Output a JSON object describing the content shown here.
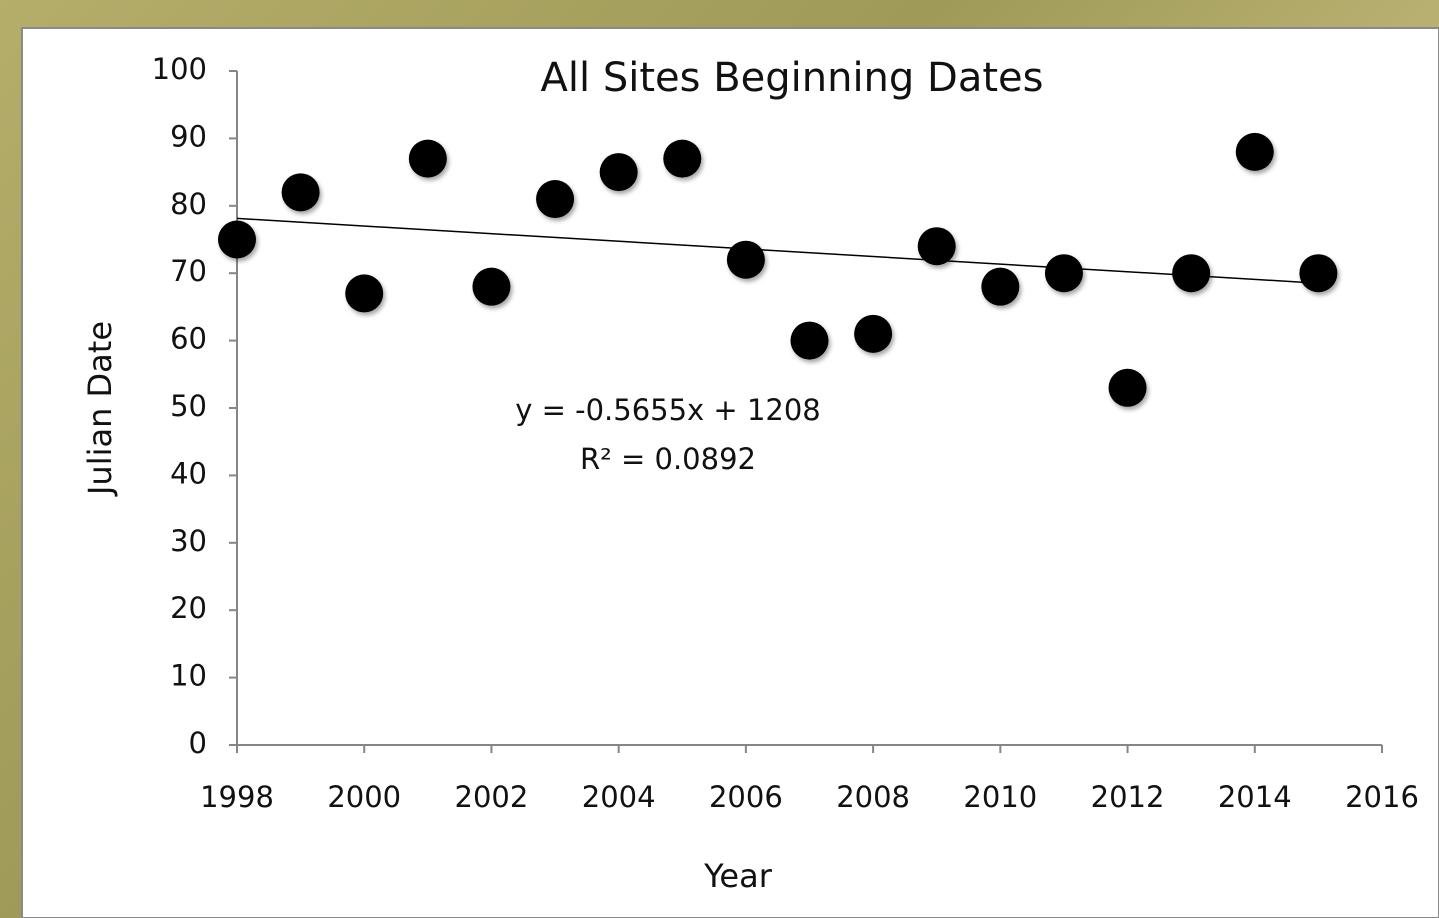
{
  "chart_data": {
    "type": "scatter",
    "title": "All Sites Beginning Dates",
    "x_label": "Year",
    "y_label": "Julian Date",
    "x": [
      1998,
      1999,
      2000,
      2001,
      2002,
      2003,
      2004,
      2005,
      2006,
      2007,
      2008,
      2009,
      2010,
      2011,
      2012,
      2013,
      2014,
      2015
    ],
    "values": [
      75,
      82,
      67,
      87,
      68,
      81,
      85,
      87,
      72,
      60,
      61,
      74,
      68,
      70,
      53,
      70,
      88,
      70
    ],
    "color": "#000000",
    "xlim": [
      1998,
      2016
    ],
    "xticks": [
      1998,
      2000,
      2002,
      2004,
      2006,
      2008,
      2010,
      2012,
      2014,
      2016
    ],
    "ylim": [
      0,
      100
    ],
    "yticks": [
      0,
      10,
      20,
      30,
      40,
      50,
      60,
      70,
      80,
      90,
      100
    ],
    "grid": false,
    "trendline": {
      "slope": -0.5655,
      "intercept": 1208,
      "label": "y = -0.5655x + 1208",
      "r2_label": "R² = 0.0892"
    }
  }
}
